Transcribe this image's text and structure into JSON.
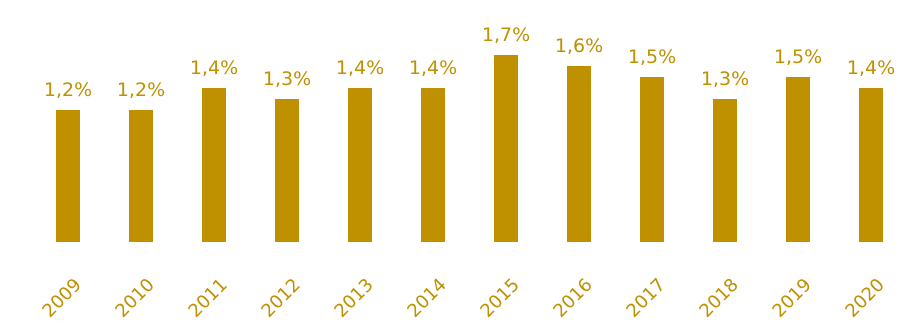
{
  "colors": {
    "bar": "#BF9000",
    "label": "#BF9000",
    "background": "#FFFFFF"
  },
  "chart_data": {
    "type": "bar",
    "categories": [
      "2009",
      "2010",
      "2011",
      "2012",
      "2013",
      "2014",
      "2015",
      "2016",
      "2017",
      "2018",
      "2019",
      "2020"
    ],
    "values": [
      1.2,
      1.2,
      1.4,
      1.3,
      1.4,
      1.4,
      1.7,
      1.6,
      1.5,
      1.3,
      1.5,
      1.4
    ],
    "data_labels": [
      "1,2%",
      "1,2%",
      "1,4%",
      "1,3%",
      "1,4%",
      "1,4%",
      "1,7%",
      "1,6%",
      "1,5%",
      "1,3%",
      "1,5%",
      "1,4%"
    ],
    "title": "",
    "xlabel": "",
    "ylabel": "",
    "grid": false,
    "legend": "none"
  }
}
